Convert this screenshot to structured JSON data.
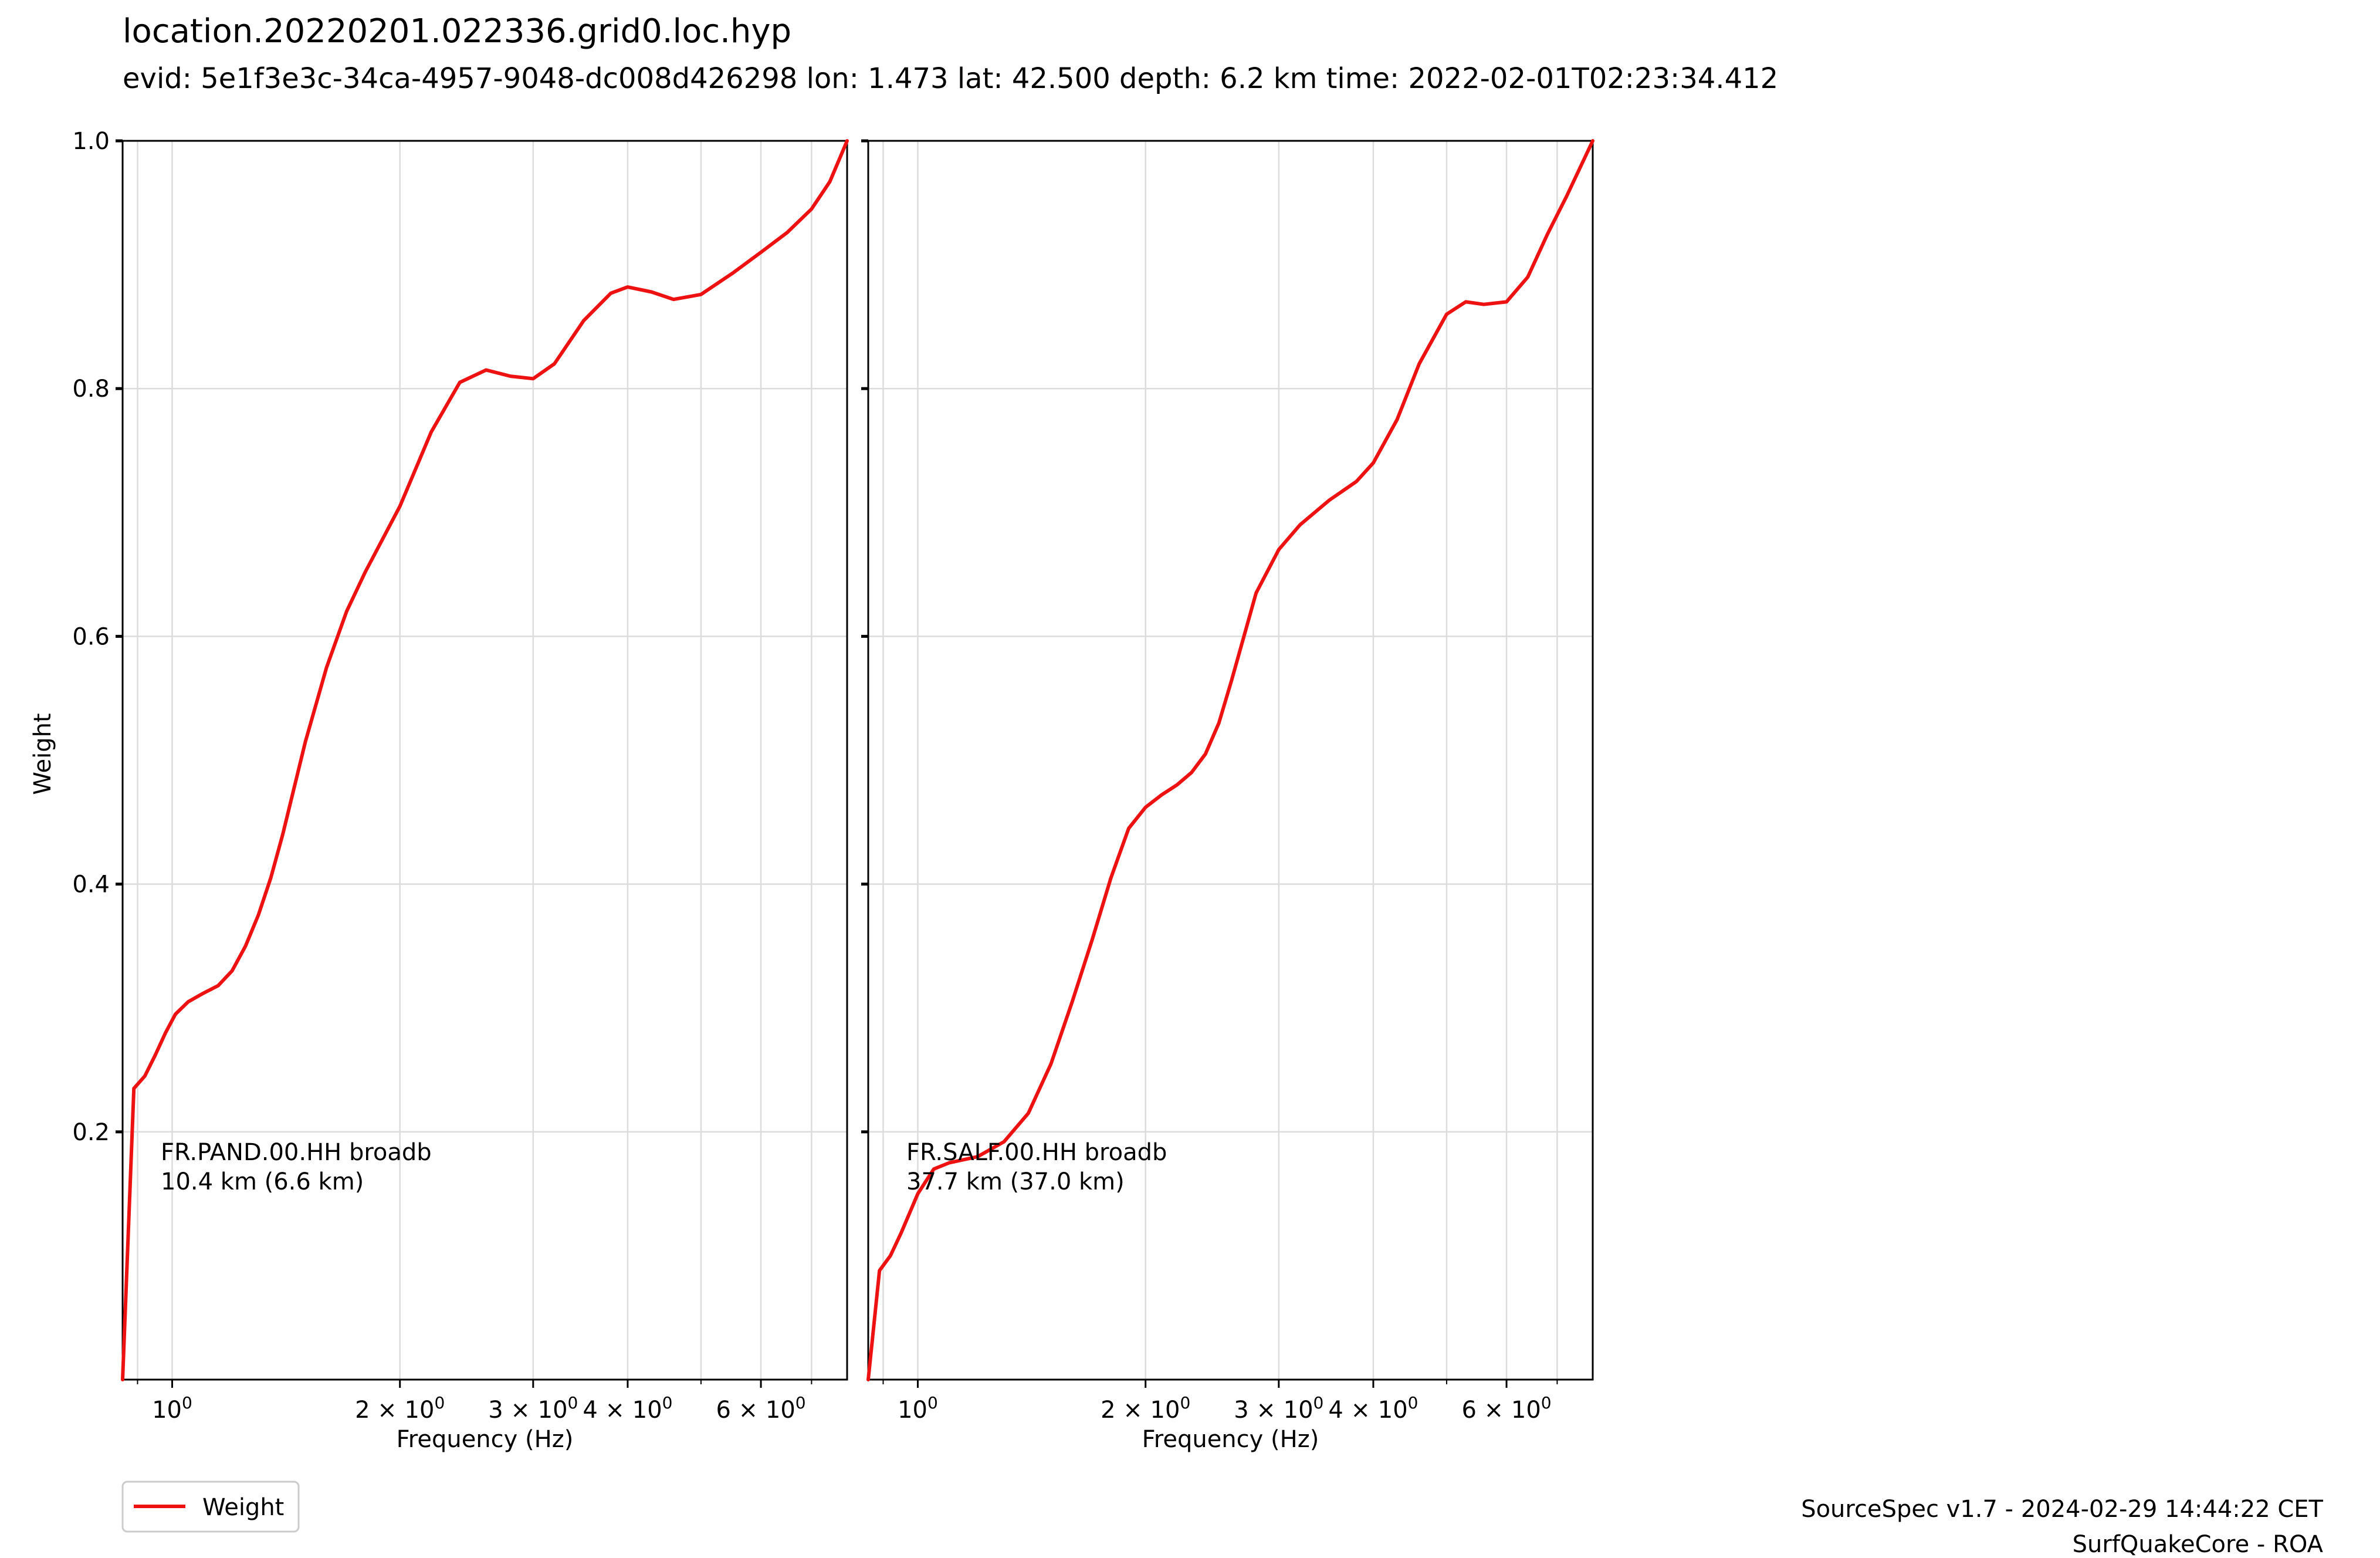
{
  "figure": {
    "title": "location.20220201.022336.grid0.loc.hyp",
    "subtitle": "evid: 5e1f3e3c-34ca-4957-9048-dc008d426298 lon: 1.473 lat: 42.500 depth: 6.2 km time: 2022-02-01T02:23:34.412",
    "footer_line1": "SourceSpec v1.7 - 2024-02-29 14:44:22 CET",
    "footer_line2": "SurfQuakeCore - ROA"
  },
  "legend": {
    "label": "Weight",
    "color": "#ee1111"
  },
  "chart_data": [
    {
      "type": "line",
      "xscale": "log",
      "xlim": [
        0.86,
        7.8
      ],
      "ylim": [
        0,
        1.0
      ],
      "grid": true,
      "xlabel": "Frequency (Hz)",
      "ylabel": "Weight",
      "yticks": [
        0.2,
        0.4,
        0.6,
        0.8,
        1.0
      ],
      "ytick_labels": [
        "0.2",
        "0.4",
        "0.6",
        "0.8",
        "1.0"
      ],
      "xticks": [
        {
          "value": 1,
          "base": "10",
          "exp": "0"
        },
        {
          "value": 2,
          "base": "2 × 10",
          "exp": "0"
        },
        {
          "value": 3,
          "base": "3 × 10",
          "exp": "0"
        },
        {
          "value": 4,
          "base": "4 × 10",
          "exp": "0"
        },
        {
          "value": 6,
          "base": "6 × 10",
          "exp": "0"
        }
      ],
      "annotation": [
        "FR.PAND.00.HH broadb",
        "10.4 km (6.6 km)"
      ],
      "series": [
        {
          "color": "#ee1111",
          "x": [
            0.86,
            0.89,
            0.92,
            0.95,
            0.98,
            1.01,
            1.05,
            1.1,
            1.15,
            1.2,
            1.25,
            1.3,
            1.35,
            1.4,
            1.5,
            1.6,
            1.7,
            1.8,
            2.0,
            2.2,
            2.4,
            2.6,
            2.8,
            3.0,
            3.2,
            3.5,
            3.8,
            4.0,
            4.3,
            4.6,
            5.0,
            5.5,
            6.0,
            6.5,
            7.0,
            7.4,
            7.8
          ],
          "y": [
            0.0,
            0.235,
            0.245,
            0.262,
            0.28,
            0.295,
            0.305,
            0.312,
            0.318,
            0.33,
            0.35,
            0.375,
            0.405,
            0.44,
            0.515,
            0.575,
            0.62,
            0.652,
            0.705,
            0.765,
            0.805,
            0.815,
            0.81,
            0.808,
            0.82,
            0.855,
            0.877,
            0.882,
            0.878,
            0.872,
            0.876,
            0.893,
            0.91,
            0.926,
            0.945,
            0.967,
            1.0
          ]
        }
      ]
    },
    {
      "type": "line",
      "xscale": "log",
      "xlim": [
        0.86,
        7.8
      ],
      "ylim": [
        0,
        1.0
      ],
      "grid": true,
      "xlabel": "Frequency (Hz)",
      "ylabel": "",
      "yticks": [
        0.2,
        0.4,
        0.6,
        0.8,
        1.0
      ],
      "ytick_labels": [],
      "xticks": [
        {
          "value": 1,
          "base": "10",
          "exp": "0"
        },
        {
          "value": 2,
          "base": "2 × 10",
          "exp": "0"
        },
        {
          "value": 3,
          "base": "3 × 10",
          "exp": "0"
        },
        {
          "value": 4,
          "base": "4 × 10",
          "exp": "0"
        },
        {
          "value": 6,
          "base": "6 × 10",
          "exp": "0"
        }
      ],
      "annotation": [
        "FR.SALF.00.HH broadb",
        "37.7 km (37.0 km)"
      ],
      "series": [
        {
          "color": "#ee1111",
          "x": [
            0.86,
            0.89,
            0.92,
            0.95,
            1.0,
            1.05,
            1.1,
            1.2,
            1.3,
            1.4,
            1.5,
            1.6,
            1.7,
            1.8,
            1.9,
            2.0,
            2.1,
            2.2,
            2.3,
            2.4,
            2.5,
            2.6,
            2.8,
            3.0,
            3.2,
            3.5,
            3.8,
            4.0,
            4.3,
            4.6,
            5.0,
            5.3,
            5.6,
            6.0,
            6.4,
            6.8,
            7.2,
            7.8
          ],
          "y": [
            0.0,
            0.088,
            0.1,
            0.118,
            0.15,
            0.17,
            0.175,
            0.18,
            0.192,
            0.215,
            0.255,
            0.305,
            0.355,
            0.405,
            0.445,
            0.462,
            0.472,
            0.48,
            0.49,
            0.505,
            0.53,
            0.565,
            0.635,
            0.67,
            0.69,
            0.71,
            0.725,
            0.74,
            0.775,
            0.82,
            0.86,
            0.87,
            0.868,
            0.87,
            0.89,
            0.925,
            0.955,
            1.0
          ]
        }
      ]
    }
  ]
}
